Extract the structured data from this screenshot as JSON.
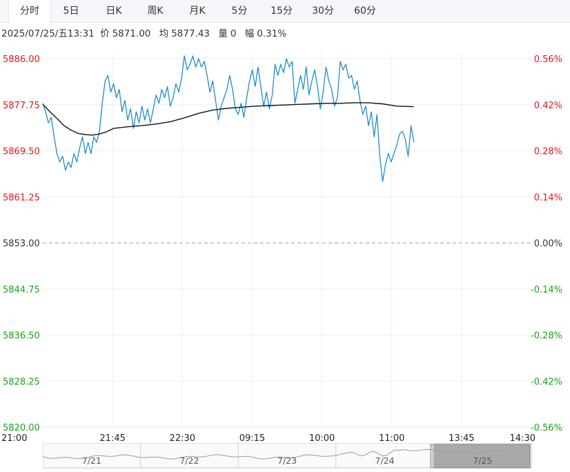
{
  "tabs": [
    {
      "label": "分时",
      "active": true
    },
    {
      "label": "5日",
      "active": false
    },
    {
      "label": "日K",
      "active": false
    },
    {
      "label": "周K",
      "active": false
    },
    {
      "label": "月K",
      "active": false
    },
    {
      "label": "5分",
      "active": false
    },
    {
      "label": "15分",
      "active": false
    },
    {
      "label": "30分",
      "active": false
    },
    {
      "label": "60分",
      "active": false
    }
  ],
  "info": {
    "datetime": "2025/07/25/五13:31",
    "price_label": "价",
    "price": "5871.00",
    "avg_label": "均",
    "avg": "5877.43",
    "volume_label": "量",
    "volume": "0",
    "change_label": "幅",
    "change": "0.31%"
  },
  "colors": {
    "up": "#e0191b",
    "down": "#1aa11a",
    "neutral": "#333333",
    "price_line": "#1f8bc9",
    "avg_line": "#111111",
    "grid": "#eceef2"
  },
  "chart_data": {
    "type": "line",
    "prev_close": 5853.0,
    "ylim": [
      5820.0,
      5886.0
    ],
    "y_ticks": [
      "5886.00",
      "5877.75",
      "5869.50",
      "5861.25",
      "5853.00",
      "5844.75",
      "5836.50",
      "5828.25",
      "5820.00"
    ],
    "pct_ticks": [
      "0.56%",
      "0.42%",
      "0.28%",
      "0.14%",
      "0.00%",
      "-0.14%",
      "-0.28%",
      "-0.42%",
      "-0.56%"
    ],
    "x_ticks": [
      "21:00",
      "21:45",
      "22:30",
      "09:15",
      "10:00",
      "11:00",
      "13:45",
      "14:30"
    ],
    "total_minutes": 345,
    "series": [
      {
        "key": "price",
        "x": [
          0,
          2,
          4,
          6,
          8,
          10,
          12,
          14,
          16,
          18,
          20,
          22,
          24,
          26,
          28,
          30,
          32,
          34,
          36,
          38,
          40,
          42,
          44,
          46,
          48,
          50,
          52,
          54,
          56,
          58,
          60,
          62,
          64,
          66,
          68,
          70,
          72,
          74,
          76,
          78,
          80,
          82,
          84,
          86,
          88,
          90,
          92,
          94,
          96,
          98,
          100,
          102,
          104,
          106,
          108,
          110,
          112,
          114,
          116,
          118,
          120,
          122,
          124,
          126,
          128,
          130,
          132,
          134,
          136,
          138,
          140,
          142,
          144,
          146,
          148,
          150,
          152,
          154,
          156,
          158,
          160,
          162,
          164,
          166,
          168,
          170,
          172,
          174,
          176,
          178,
          180,
          182,
          184,
          186,
          188,
          190,
          192,
          194,
          196,
          198,
          200,
          202,
          204,
          206,
          208,
          210,
          212,
          214,
          216,
          218,
          220,
          222,
          224,
          226,
          228,
          230,
          232,
          234,
          236,
          238,
          240,
          242,
          244,
          246,
          248,
          250,
          252,
          254,
          256,
          258,
          260,
          262
        ],
        "values": [
          5878.0,
          5876.5,
          5874.5,
          5875.5,
          5872.0,
          5869.0,
          5867.5,
          5868.5,
          5866.0,
          5867.5,
          5866.5,
          5869.0,
          5867.5,
          5870.0,
          5872.0,
          5869.0,
          5871.0,
          5869.0,
          5872.0,
          5871.0,
          5873.0,
          5878.0,
          5882.0,
          5883.0,
          5880.0,
          5881.5,
          5879.0,
          5880.5,
          5876.5,
          5878.5,
          5875.0,
          5877.0,
          5873.5,
          5876.5,
          5874.5,
          5877.5,
          5875.0,
          5877.0,
          5874.5,
          5877.0,
          5879.5,
          5878.0,
          5880.5,
          5879.0,
          5881.0,
          5877.5,
          5879.0,
          5881.5,
          5880.0,
          5882.5,
          5886.5,
          5884.0,
          5885.0,
          5886.5,
          5884.5,
          5886.0,
          5884.5,
          5885.5,
          5883.0,
          5880.0,
          5882.0,
          5878.5,
          5875.0,
          5877.5,
          5879.0,
          5880.5,
          5883.0,
          5880.5,
          5877.0,
          5876.0,
          5878.0,
          5875.5,
          5879.0,
          5882.0,
          5884.0,
          5881.0,
          5884.5,
          5881.0,
          5877.5,
          5880.0,
          5877.0,
          5879.5,
          5885.0,
          5883.0,
          5885.0,
          5883.5,
          5886.0,
          5884.5,
          5885.5,
          5878.0,
          5880.5,
          5883.0,
          5880.5,
          5884.5,
          5879.5,
          5882.0,
          5884.0,
          5881.0,
          5877.0,
          5880.0,
          5884.5,
          5882.0,
          5880.5,
          5877.5,
          5879.0,
          5885.5,
          5884.0,
          5885.0,
          5882.5,
          5883.0,
          5880.5,
          5882.0,
          5878.5,
          5876.0,
          5877.5,
          5874.0,
          5876.5,
          5872.0,
          5876.0,
          5868.5,
          5864.0,
          5867.0,
          5869.0,
          5867.5,
          5869.0,
          5870.5,
          5872.5,
          5873.0,
          5871.5,
          5868.5,
          5874.0,
          5871.0
        ]
      },
      {
        "key": "average",
        "x": [
          0,
          5,
          10,
          15,
          20,
          25,
          30,
          35,
          40,
          45,
          50,
          60,
          70,
          80,
          90,
          100,
          110,
          120,
          130,
          140,
          150,
          160,
          170,
          180,
          190,
          200,
          210,
          220,
          230,
          240,
          250,
          262
        ],
        "values": [
          5877.8,
          5876.5,
          5875.3,
          5874.0,
          5873.2,
          5872.6,
          5872.4,
          5872.3,
          5872.5,
          5872.9,
          5873.5,
          5873.8,
          5874.0,
          5874.3,
          5874.7,
          5875.4,
          5876.2,
          5876.8,
          5877.1,
          5877.3,
          5877.5,
          5877.6,
          5877.7,
          5877.8,
          5877.9,
          5878.0,
          5878.0,
          5878.1,
          5878.1,
          5877.9,
          5877.5,
          5877.4
        ]
      }
    ]
  },
  "navigator": {
    "labels": [
      "7/21",
      "7/22",
      "7/23",
      "7/24",
      "7/25"
    ]
  }
}
